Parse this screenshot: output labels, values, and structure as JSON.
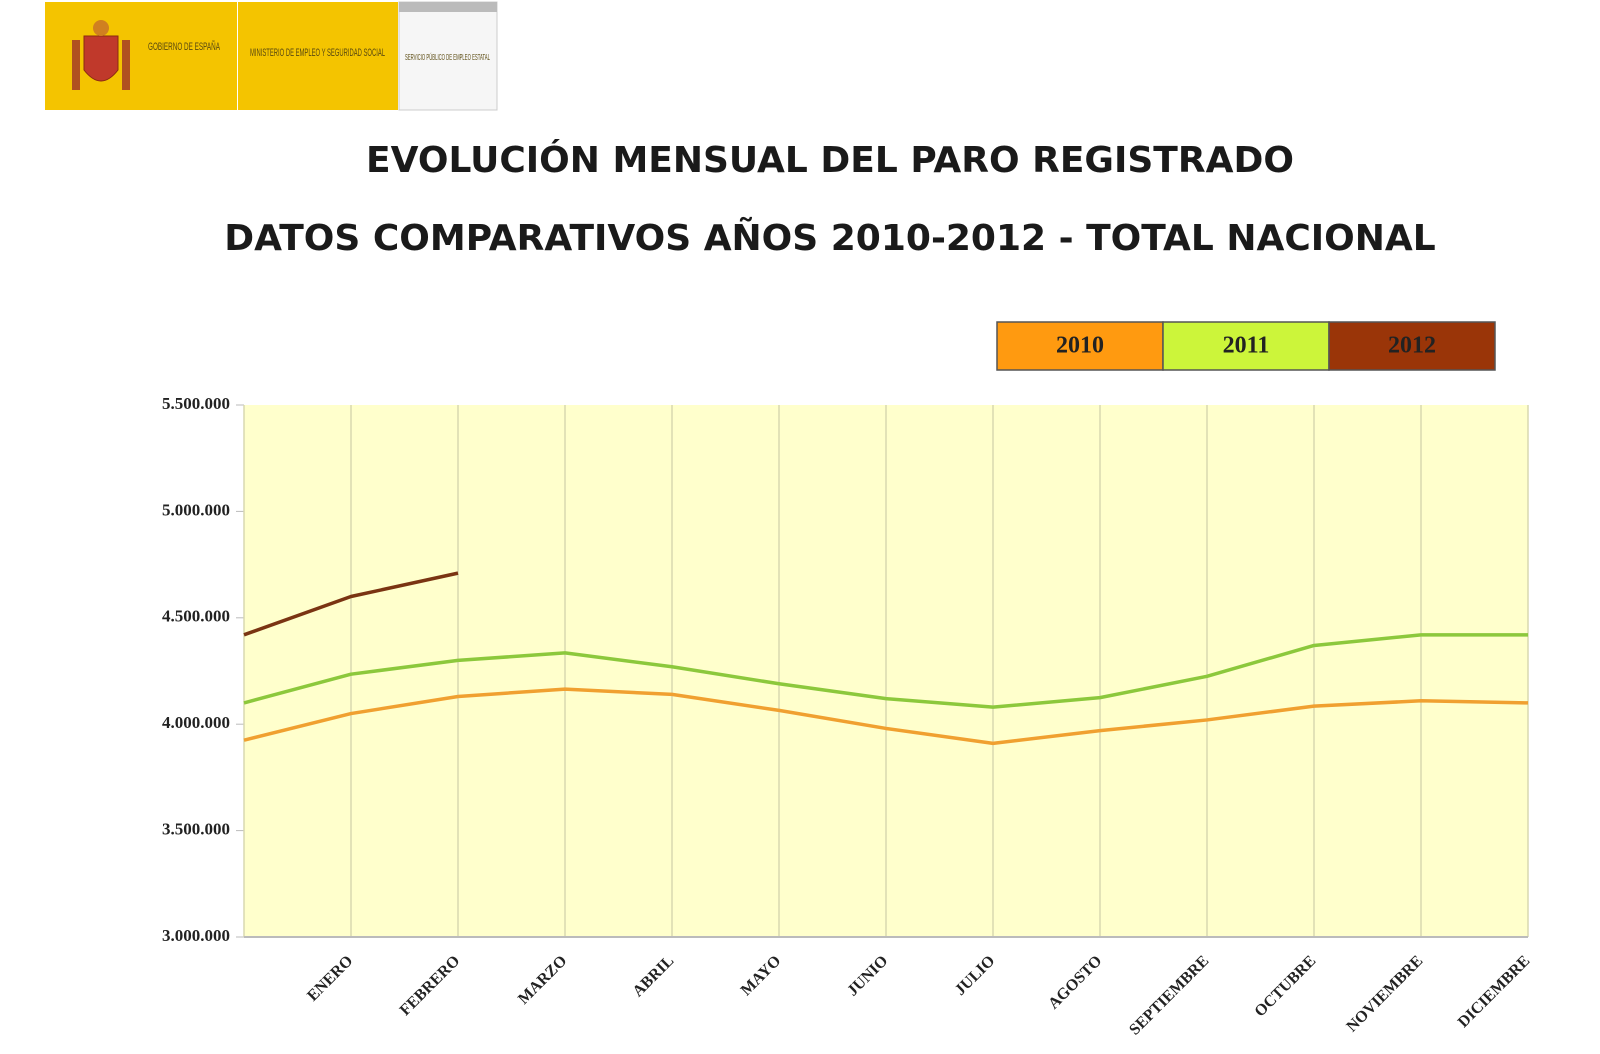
{
  "header": {
    "gov": "GOBIERNO DE ESPAÑA",
    "ministry": "MINISTERIO DE EMPLEO Y SEGURIDAD SOCIAL",
    "service": "SERVICIO PÚBLICO DE EMPLEO ESTATAL"
  },
  "chart_data": {
    "type": "line",
    "title": "EVOLUCIÓN MENSUAL DEL PARO REGISTRADO",
    "subtitle": "DATOS COMPARATIVOS AÑOS 2010-2012 - TOTAL NACIONAL",
    "categories": [
      null,
      "ENERO",
      "FEBRERO",
      "MARZO",
      "ABRIL",
      "MAYO",
      "JUNIO",
      "JULIO",
      "AGOSTO",
      "SEPTIEMBRE",
      "OCTUBRE",
      "NOVIEMBRE",
      "DICIEMBRE"
    ],
    "series": [
      {
        "name": "2010",
        "color": "#f0a030",
        "legend_color": "#ff9a10",
        "values": [
          3925000,
          4050000,
          4130000,
          4165000,
          4140000,
          4065000,
          3980000,
          3910000,
          3970000,
          4020000,
          4085000,
          4110000,
          4100000
        ]
      },
      {
        "name": "2011",
        "color": "#8cc83c",
        "legend_color": "#ccf53a",
        "values": [
          4100000,
          4235000,
          4300000,
          4335000,
          4270000,
          4190000,
          4120000,
          4080000,
          4125000,
          4225000,
          4370000,
          4420000,
          4420000
        ]
      },
      {
        "name": "2012",
        "color": "#7a3412",
        "legend_color": "#9a3508",
        "values": [
          4420000,
          4600000,
          4710000,
          null,
          null,
          null,
          null,
          null,
          null,
          null,
          null,
          null,
          null
        ]
      }
    ],
    "ylim": [
      3000000,
      5500000
    ],
    "yticks": [
      {
        "value": 3000000,
        "label": "3.000.000"
      },
      {
        "value": 3500000,
        "label": "3.500.000"
      },
      {
        "value": 4000000,
        "label": "4.000.000"
      },
      {
        "value": 4500000,
        "label": "4.500.000"
      },
      {
        "value": 5000000,
        "label": "5.000.000"
      },
      {
        "value": 5500000,
        "label": "5.500.000"
      }
    ],
    "grid": true,
    "background": "#ffffcc",
    "legend": "top-right"
  }
}
